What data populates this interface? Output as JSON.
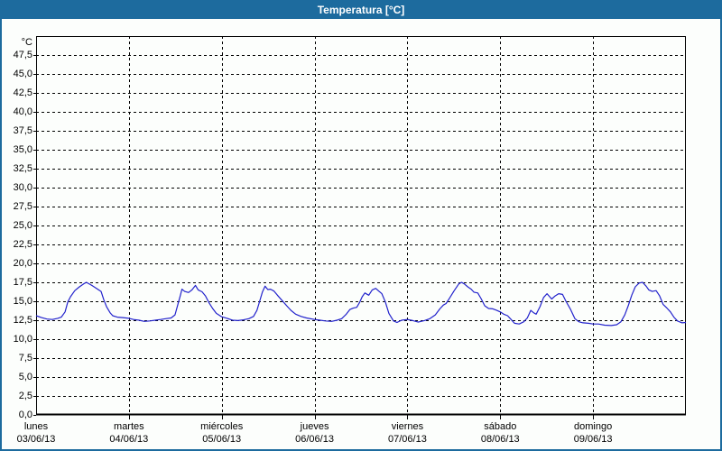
{
  "window": {
    "title": "Temperatura [°C]"
  },
  "colors": {
    "titlebar_bg": "#1d6b9e",
    "titlebar_text": "#ffffff",
    "window_border": "#1d6b9e",
    "background": "#fcfefc",
    "grid": "#000000",
    "axis": "#000000",
    "line": "#2222cc",
    "text": "#000000"
  },
  "chart_data": {
    "type": "line",
    "title": "Temperatura [°C]",
    "ylabel": "°C",
    "ylim": [
      0,
      50
    ],
    "y_tick_step": 2.5,
    "y_tick_labels": [
      "0,0",
      "2,5",
      "5,0",
      "7,5",
      "10,0",
      "12,5",
      "15,0",
      "17,5",
      "20,0",
      "22,5",
      "25,0",
      "27,5",
      "30,0",
      "32,5",
      "35,0",
      "37,5",
      "40,0",
      "42,5",
      "45,0",
      "47,5"
    ],
    "x_total_hours": 168,
    "grid": "dashed",
    "days": [
      {
        "name": "lunes",
        "date": "03/06/13"
      },
      {
        "name": "martes",
        "date": "04/06/13"
      },
      {
        "name": "miércoles",
        "date": "05/06/13"
      },
      {
        "name": "jueves",
        "date": "06/06/13"
      },
      {
        "name": "viernes",
        "date": "07/06/13"
      },
      {
        "name": "sábado",
        "date": "08/06/13"
      },
      {
        "name": "domingo",
        "date": "09/06/13"
      }
    ],
    "series": [
      {
        "name": "Temperatura",
        "color": "#2222cc",
        "points": [
          [
            0.0,
            13.1
          ],
          [
            1.4,
            12.85
          ],
          [
            2.8,
            12.65
          ],
          [
            4.2,
            12.6
          ],
          [
            5.6,
            12.75
          ],
          [
            6.5,
            12.9
          ],
          [
            7.5,
            13.6
          ],
          [
            8.2,
            14.9
          ],
          [
            8.9,
            15.6
          ],
          [
            10.0,
            16.4
          ],
          [
            11.2,
            16.9
          ],
          [
            12.3,
            17.3
          ],
          [
            13.0,
            17.5
          ],
          [
            14.4,
            17.1
          ],
          [
            15.6,
            16.7
          ],
          [
            16.3,
            16.45
          ],
          [
            16.8,
            16.3
          ],
          [
            17.5,
            15.2
          ],
          [
            18.2,
            14.3
          ],
          [
            19.1,
            13.5
          ],
          [
            19.8,
            13.1
          ],
          [
            21.0,
            12.9
          ],
          [
            22.4,
            12.85
          ],
          [
            24.0,
            12.75
          ],
          [
            25.2,
            12.6
          ],
          [
            26.6,
            12.5
          ],
          [
            28.0,
            12.35
          ],
          [
            29.4,
            12.4
          ],
          [
            30.8,
            12.5
          ],
          [
            32.2,
            12.6
          ],
          [
            33.5,
            12.7
          ],
          [
            34.9,
            12.8
          ],
          [
            35.9,
            13.2
          ],
          [
            36.6,
            14.5
          ],
          [
            37.3,
            15.8
          ],
          [
            37.7,
            16.6
          ],
          [
            38.4,
            16.3
          ],
          [
            39.4,
            16.15
          ],
          [
            40.3,
            16.5
          ],
          [
            41.2,
            17.1
          ],
          [
            41.9,
            16.5
          ],
          [
            42.9,
            16.25
          ],
          [
            43.8,
            15.7
          ],
          [
            44.7,
            14.8
          ],
          [
            45.7,
            14.0
          ],
          [
            46.6,
            13.4
          ],
          [
            48.0,
            12.95
          ],
          [
            49.4,
            12.75
          ],
          [
            50.8,
            12.5
          ],
          [
            52.2,
            12.45
          ],
          [
            53.6,
            12.55
          ],
          [
            55.0,
            12.7
          ],
          [
            56.2,
            13.0
          ],
          [
            57.1,
            13.8
          ],
          [
            57.8,
            15.0
          ],
          [
            58.5,
            16.2
          ],
          [
            59.2,
            17.0
          ],
          [
            59.9,
            16.55
          ],
          [
            60.6,
            16.6
          ],
          [
            61.5,
            16.35
          ],
          [
            62.4,
            15.8
          ],
          [
            63.6,
            15.1
          ],
          [
            64.8,
            14.4
          ],
          [
            65.9,
            13.8
          ],
          [
            67.1,
            13.3
          ],
          [
            68.5,
            13.0
          ],
          [
            69.9,
            12.8
          ],
          [
            72.0,
            12.6
          ],
          [
            73.4,
            12.5
          ],
          [
            74.8,
            12.4
          ],
          [
            76.4,
            12.35
          ],
          [
            77.8,
            12.5
          ],
          [
            79.0,
            12.7
          ],
          [
            80.2,
            13.3
          ],
          [
            81.1,
            13.9
          ],
          [
            82.0,
            14.1
          ],
          [
            82.9,
            14.2
          ],
          [
            83.7,
            14.9
          ],
          [
            84.3,
            15.6
          ],
          [
            85.0,
            16.1
          ],
          [
            86.0,
            15.8
          ],
          [
            86.9,
            16.5
          ],
          [
            87.8,
            16.7
          ],
          [
            88.7,
            16.3
          ],
          [
            89.4,
            16.0
          ],
          [
            90.3,
            14.9
          ],
          [
            91.2,
            13.4
          ],
          [
            92.4,
            12.4
          ],
          [
            93.3,
            12.2
          ],
          [
            94.5,
            12.5
          ],
          [
            96.0,
            12.6
          ],
          [
            97.4,
            12.45
          ],
          [
            98.8,
            12.25
          ],
          [
            100.4,
            12.45
          ],
          [
            101.8,
            12.7
          ],
          [
            103.2,
            13.2
          ],
          [
            104.4,
            14.0
          ],
          [
            105.3,
            14.5
          ],
          [
            106.0,
            14.7
          ],
          [
            106.9,
            15.4
          ],
          [
            108.1,
            16.4
          ],
          [
            109.3,
            17.3
          ],
          [
            110.0,
            17.5
          ],
          [
            110.7,
            17.3
          ],
          [
            111.6,
            16.9
          ],
          [
            112.5,
            16.6
          ],
          [
            113.2,
            16.2
          ],
          [
            114.2,
            16.1
          ],
          [
            115.1,
            15.3
          ],
          [
            116.0,
            14.4
          ],
          [
            117.0,
            14.05
          ],
          [
            118.1,
            14.0
          ],
          [
            119.1,
            13.8
          ],
          [
            120.0,
            13.6
          ],
          [
            120.9,
            13.3
          ],
          [
            121.9,
            13.1
          ],
          [
            122.8,
            12.6
          ],
          [
            123.7,
            12.1
          ],
          [
            124.9,
            12.0
          ],
          [
            126.1,
            12.3
          ],
          [
            127.0,
            12.8
          ],
          [
            127.9,
            13.8
          ],
          [
            128.6,
            13.5
          ],
          [
            129.3,
            13.3
          ],
          [
            130.3,
            14.3
          ],
          [
            131.2,
            15.5
          ],
          [
            132.1,
            16.0
          ],
          [
            133.3,
            15.3
          ],
          [
            134.2,
            15.7
          ],
          [
            135.1,
            16.0
          ],
          [
            136.1,
            15.9
          ],
          [
            137.0,
            15.0
          ],
          [
            138.2,
            13.9
          ],
          [
            139.3,
            12.7
          ],
          [
            140.3,
            12.3
          ],
          [
            141.4,
            12.15
          ],
          [
            142.8,
            12.1
          ],
          [
            144.0,
            12.0
          ],
          [
            145.4,
            12.0
          ],
          [
            147.0,
            11.85
          ],
          [
            148.7,
            11.8
          ],
          [
            150.1,
            11.9
          ],
          [
            151.2,
            12.3
          ],
          [
            152.2,
            13.2
          ],
          [
            153.1,
            14.4
          ],
          [
            154.0,
            15.8
          ],
          [
            154.9,
            16.9
          ],
          [
            155.9,
            17.4
          ],
          [
            156.8,
            17.5
          ],
          [
            157.7,
            17.0
          ],
          [
            158.4,
            16.5
          ],
          [
            159.3,
            16.3
          ],
          [
            160.3,
            16.4
          ],
          [
            161.2,
            15.7
          ],
          [
            162.1,
            14.6
          ],
          [
            163.1,
            14.1
          ],
          [
            164.0,
            13.6
          ],
          [
            164.9,
            12.9
          ],
          [
            165.8,
            12.4
          ],
          [
            167.0,
            12.15
          ],
          [
            168.0,
            12.2
          ]
        ]
      }
    ]
  }
}
